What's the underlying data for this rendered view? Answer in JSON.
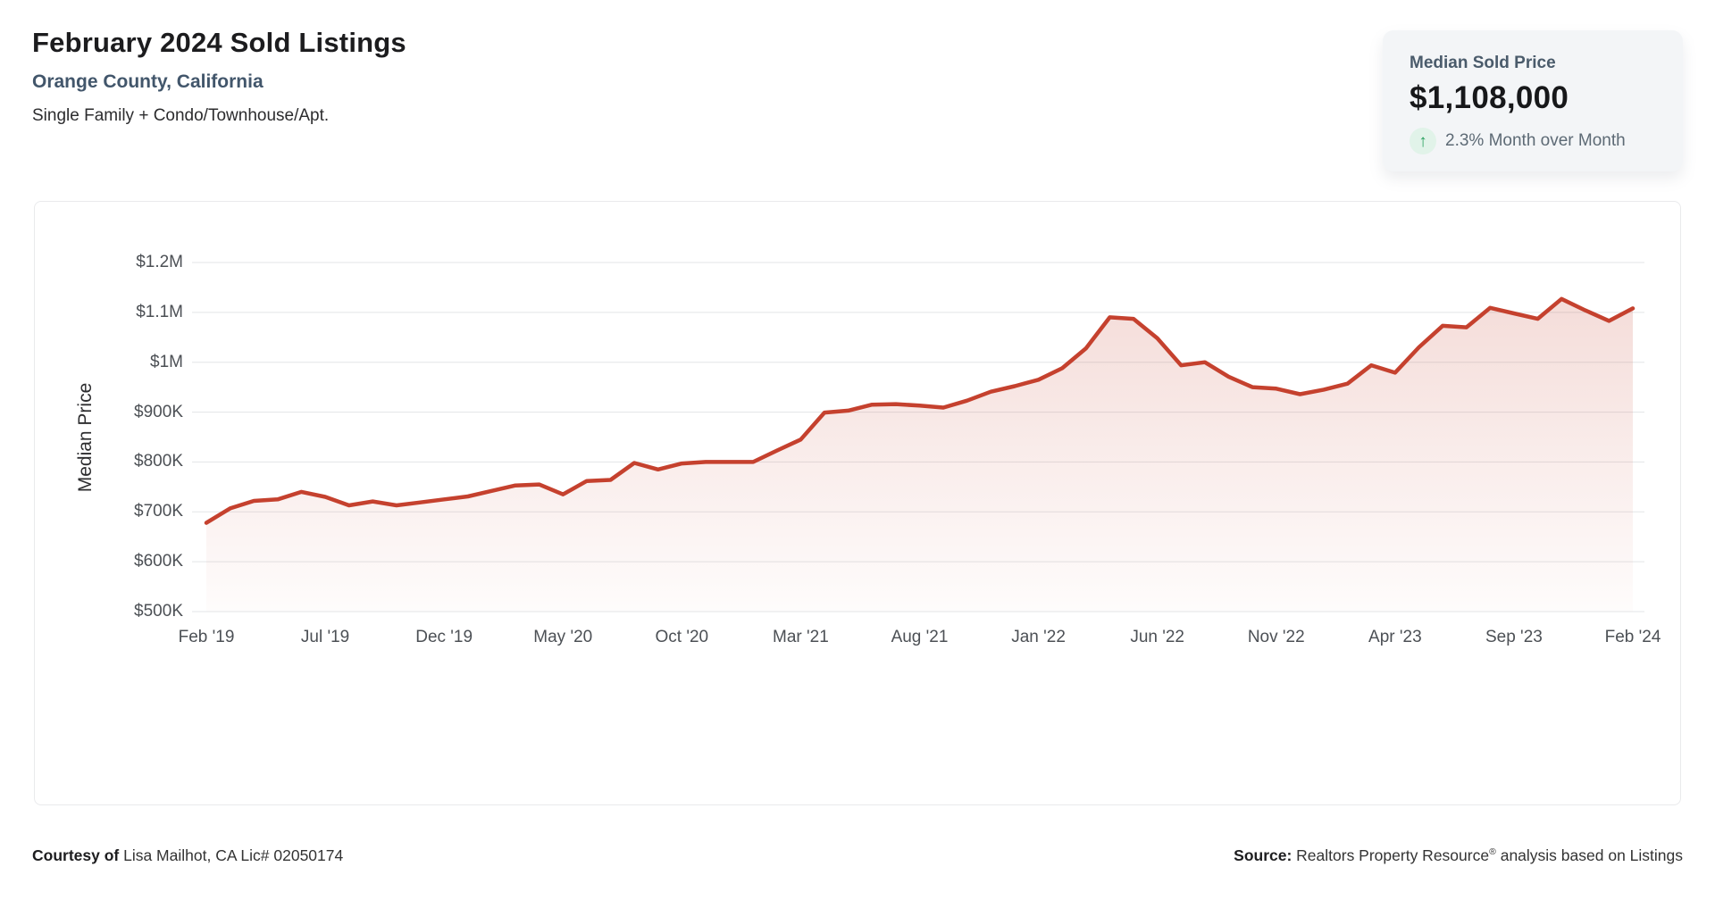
{
  "header": {
    "title": "February 2024 Sold Listings",
    "subtitle": "Orange County, California",
    "property_types": "Single Family + Condo/Townhouse/Apt."
  },
  "stat_card": {
    "label": "Median Sold Price",
    "value": "$1,108,000",
    "trend_icon": "arrow-up-icon",
    "trend_glyph": "↑",
    "trend_text": "2.3% Month over Month",
    "trend_color": "#27a05e",
    "trend_bg": "#e1f3e9",
    "card_bg": "#f3f5f7"
  },
  "footer": {
    "courtesy_bold": "Courtesy of",
    "courtesy_rest": " Lisa Mailhot, CA Lic# 02050174",
    "source_bold": "Source:",
    "source_name": " Realtors Property Resource",
    "source_reg": "®",
    "source_rest": " analysis based on Listings"
  },
  "chart_data": {
    "type": "area",
    "title": "",
    "xlabel": "",
    "ylabel": "Median Price",
    "first_month": "Feb '19",
    "last_month": "Feb '24",
    "ylim_usd_thousands": [
      500,
      1200
    ],
    "grid": true,
    "legend": false,
    "line_color": "#c5412e",
    "grid_color": "#e3e5e7",
    "area_gradient_top": "rgba(197,65,46,0.20)",
    "area_gradient_bottom": "rgba(197,65,46,0.015)",
    "y_ticks": [
      {
        "v": 500,
        "label": "$500K"
      },
      {
        "v": 600,
        "label": "$600K"
      },
      {
        "v": 700,
        "label": "$700K"
      },
      {
        "v": 800,
        "label": "$800K"
      },
      {
        "v": 900,
        "label": "$900K"
      },
      {
        "v": 1000,
        "label": "$1M"
      },
      {
        "v": 1100,
        "label": "$1.1M"
      },
      {
        "v": 1200,
        "label": "$1.2M"
      }
    ],
    "x_ticks": [
      {
        "i": 0,
        "label": "Feb '19"
      },
      {
        "i": 5,
        "label": "Jul '19"
      },
      {
        "i": 10,
        "label": "Dec '19"
      },
      {
        "i": 15,
        "label": "May '20"
      },
      {
        "i": 20,
        "label": "Oct '20"
      },
      {
        "i": 25,
        "label": "Mar '21"
      },
      {
        "i": 30,
        "label": "Aug '21"
      },
      {
        "i": 35,
        "label": "Jan '22"
      },
      {
        "i": 40,
        "label": "Jun '22"
      },
      {
        "i": 45,
        "label": "Nov '22"
      },
      {
        "i": 50,
        "label": "Apr '23"
      },
      {
        "i": 55,
        "label": "Sep '23"
      },
      {
        "i": 60,
        "label": "Feb '24"
      }
    ],
    "values_usd_thousands": [
      678,
      707,
      722,
      725,
      740,
      730,
      713,
      721,
      713,
      719,
      725,
      731,
      742,
      753,
      755,
      735,
      762,
      764,
      798,
      785,
      797,
      800,
      800,
      800,
      823,
      845,
      899,
      903,
      915,
      916,
      913,
      909,
      923,
      941,
      952,
      965,
      988,
      1028,
      1090,
      1087,
      1048,
      994,
      1000,
      971,
      950,
      947,
      936,
      945,
      957,
      994,
      979,
      1030,
      1073,
      1070,
      1109,
      1098,
      1087,
      1127,
      1104,
      1083,
      1108
    ]
  }
}
